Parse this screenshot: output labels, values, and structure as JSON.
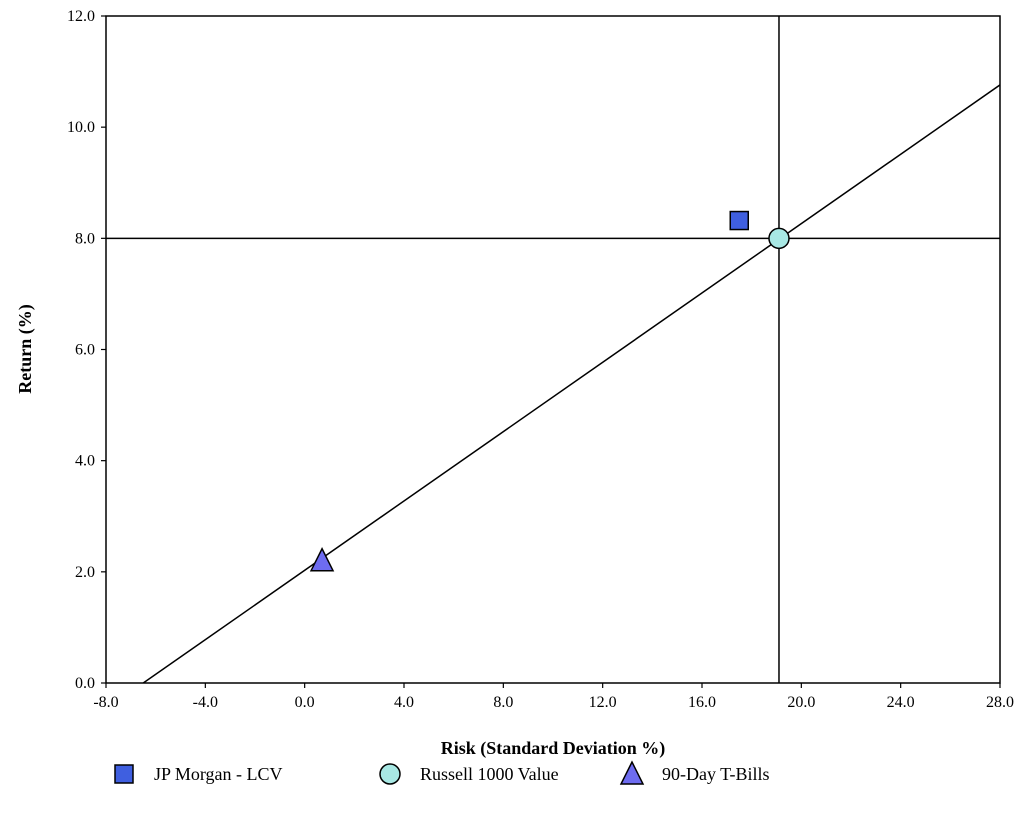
{
  "chart_data": {
    "type": "scatter",
    "title": "",
    "xlabel": "Risk (Standard Deviation %)",
    "ylabel": "Return (%)",
    "xlim": [
      -8.0,
      28.0
    ],
    "ylim": [
      0.0,
      12.0
    ],
    "x_ticks": [
      -8.0,
      -4.0,
      0.0,
      4.0,
      8.0,
      12.0,
      16.0,
      20.0,
      24.0,
      28.0
    ],
    "y_ticks": [
      0.0,
      2.0,
      4.0,
      6.0,
      8.0,
      10.0,
      12.0
    ],
    "x_tick_labels": [
      "-8.0",
      "-4.0",
      "0.0",
      "4.0",
      "8.0",
      "12.0",
      "16.0",
      "20.0",
      "24.0",
      "28.0"
    ],
    "y_tick_labels": [
      "0.0",
      "2.0",
      "4.0",
      "6.0",
      "8.0",
      "10.0",
      "12.0"
    ],
    "grid": false,
    "legend_position": "bottom",
    "series": [
      {
        "name": "JP Morgan - LCV",
        "marker": "square",
        "color": "#3f5fe0",
        "x": 17.5,
        "y": 8.32
      },
      {
        "name": "Russell 1000 Value",
        "marker": "circle",
        "color": "#a8e8e4",
        "x": 19.1,
        "y": 8.0
      },
      {
        "name": "90-Day T-Bills",
        "marker": "triangle",
        "color": "#6e6cf0",
        "x": 0.7,
        "y": 2.2
      }
    ],
    "reference_lines": {
      "horizontal_y": 8.0,
      "vertical_x": 19.1,
      "capital_market_line": {
        "from": [
          -6.5,
          0.0
        ],
        "to": [
          28.0,
          10.76
        ]
      }
    }
  }
}
